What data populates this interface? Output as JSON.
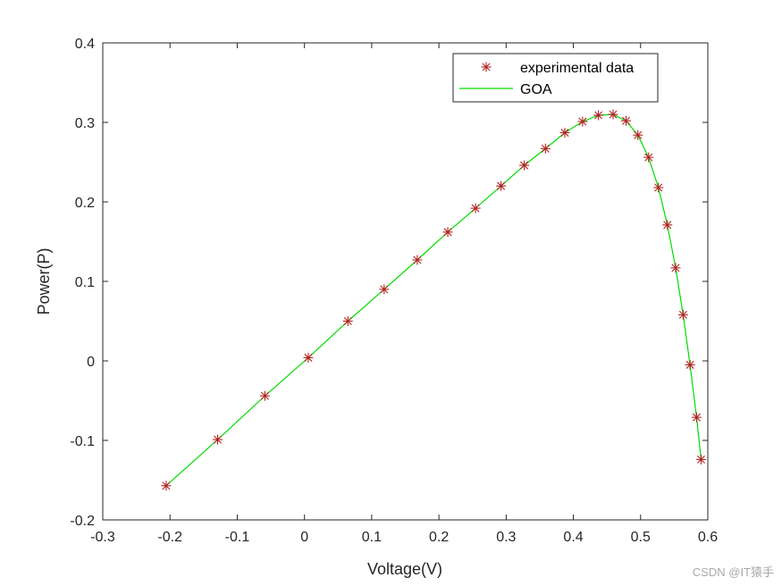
{
  "chart_data": {
    "type": "line",
    "title": "",
    "xlabel": "Voltage(V)",
    "ylabel": "Power(P)",
    "xlim": [
      -0.3,
      0.6
    ],
    "ylim": [
      -0.2,
      0.4
    ],
    "xticks": [
      "-0.3",
      "-0.2",
      "-0.1",
      "0",
      "0.1",
      "0.2",
      "0.3",
      "0.4",
      "0.5",
      "0.6"
    ],
    "yticks": [
      "-0.2",
      "-0.1",
      "0",
      "0.1",
      "0.2",
      "0.3",
      "0.4"
    ],
    "grid": false,
    "legend_position": "top-right",
    "series": [
      {
        "name": "experimental data",
        "style": "markers",
        "marker": "asterisk",
        "color": "#b22222",
        "x": [
          -0.2057,
          -0.1291,
          -0.0588,
          0.0057,
          0.0646,
          0.1185,
          0.1678,
          0.2132,
          0.2545,
          0.2924,
          0.3269,
          0.3585,
          0.3873,
          0.4137,
          0.4373,
          0.459,
          0.4784,
          0.496,
          0.5119,
          0.5265,
          0.5398,
          0.5521,
          0.5633,
          0.5736,
          0.5833,
          0.59
        ],
        "y": [
          -0.157,
          -0.099,
          -0.044,
          0.004,
          0.05,
          0.09,
          0.127,
          0.162,
          0.192,
          0.22,
          0.246,
          0.267,
          0.287,
          0.301,
          0.309,
          0.31,
          0.302,
          0.284,
          0.256,
          0.218,
          0.171,
          0.117,
          0.058,
          -0.005,
          -0.071,
          -0.124
        ]
      },
      {
        "name": "GOA",
        "style": "line",
        "color": "#00dd00",
        "x": [
          -0.2057,
          -0.1291,
          -0.0588,
          0.0057,
          0.0646,
          0.1185,
          0.1678,
          0.2132,
          0.2545,
          0.2924,
          0.3269,
          0.3585,
          0.3873,
          0.4137,
          0.4373,
          0.459,
          0.4784,
          0.496,
          0.5119,
          0.5265,
          0.5398,
          0.5521,
          0.5633,
          0.5736,
          0.5833,
          0.59
        ],
        "y": [
          -0.157,
          -0.099,
          -0.044,
          0.004,
          0.05,
          0.09,
          0.127,
          0.162,
          0.192,
          0.22,
          0.246,
          0.267,
          0.287,
          0.301,
          0.309,
          0.31,
          0.302,
          0.284,
          0.256,
          0.218,
          0.171,
          0.117,
          0.058,
          -0.005,
          -0.071,
          -0.124
        ]
      }
    ]
  },
  "watermark": "CSDN @IT猿手"
}
